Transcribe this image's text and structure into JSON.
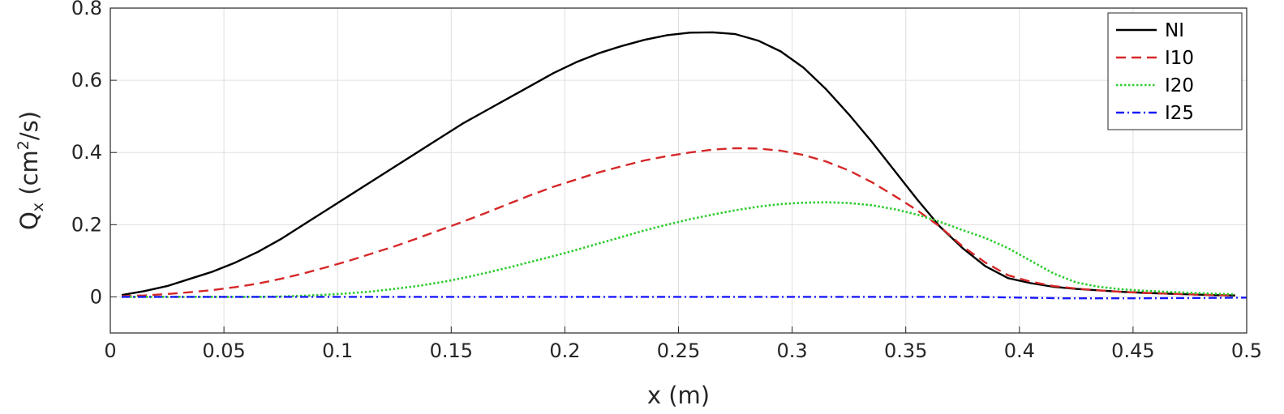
{
  "chart_data": {
    "type": "line",
    "xlabel": "x (m)",
    "ylabel": {
      "base": "Q",
      "sub": "x",
      "unit_pre": " (cm",
      "sup": "2",
      "unit_post": "/s)"
    },
    "xlim": [
      0,
      0.5
    ],
    "ylim": [
      -0.1,
      0.8
    ],
    "xticks": [
      0,
      0.05,
      0.1,
      0.15,
      0.2,
      0.25,
      0.3,
      0.35,
      0.4,
      0.45,
      0.5
    ],
    "xtick_labels": [
      "0",
      "0.05",
      "0.1",
      "0.15",
      "0.2",
      "0.25",
      "0.3",
      "0.35",
      "0.4",
      "0.45",
      "0.5"
    ],
    "yticks": [
      0,
      0.2,
      0.4,
      0.6,
      0.8
    ],
    "ytick_labels": [
      "0",
      "0.2",
      "0.4",
      "0.6",
      "0.8"
    ],
    "grid": true,
    "legend_position": "top-right",
    "series": [
      {
        "name": "NI",
        "color": "#000000",
        "dash": "solid",
        "x": [
          0.005,
          0.015,
          0.025,
          0.035,
          0.045,
          0.055,
          0.065,
          0.075,
          0.085,
          0.095,
          0.105,
          0.115,
          0.125,
          0.135,
          0.145,
          0.155,
          0.165,
          0.175,
          0.185,
          0.195,
          0.205,
          0.215,
          0.225,
          0.235,
          0.245,
          0.255,
          0.265,
          0.275,
          0.285,
          0.295,
          0.305,
          0.315,
          0.325,
          0.335,
          0.345,
          0.355,
          0.365,
          0.375,
          0.385,
          0.395,
          0.405,
          0.415,
          0.425,
          0.435,
          0.445,
          0.455,
          0.465,
          0.475,
          0.485,
          0.495
        ],
        "y": [
          0.005,
          0.016,
          0.03,
          0.05,
          0.07,
          0.095,
          0.125,
          0.16,
          0.2,
          0.24,
          0.28,
          0.32,
          0.36,
          0.4,
          0.44,
          0.48,
          0.515,
          0.55,
          0.585,
          0.62,
          0.65,
          0.675,
          0.695,
          0.712,
          0.725,
          0.732,
          0.733,
          0.728,
          0.71,
          0.68,
          0.635,
          0.575,
          0.505,
          0.43,
          0.35,
          0.27,
          0.195,
          0.135,
          0.085,
          0.052,
          0.038,
          0.028,
          0.022,
          0.018,
          0.014,
          0.011,
          0.009,
          0.007,
          0.005,
          0.004
        ]
      },
      {
        "name": "I10",
        "color": "#d62728",
        "dash": "dashed",
        "x": [
          0.005,
          0.015,
          0.025,
          0.035,
          0.045,
          0.055,
          0.065,
          0.075,
          0.085,
          0.095,
          0.105,
          0.115,
          0.125,
          0.135,
          0.145,
          0.155,
          0.165,
          0.175,
          0.185,
          0.195,
          0.205,
          0.215,
          0.225,
          0.235,
          0.245,
          0.255,
          0.265,
          0.275,
          0.285,
          0.295,
          0.305,
          0.315,
          0.325,
          0.335,
          0.345,
          0.355,
          0.365,
          0.375,
          0.385,
          0.395,
          0.405,
          0.415,
          0.425,
          0.435,
          0.445,
          0.455,
          0.465,
          0.475,
          0.485,
          0.495
        ],
        "y": [
          0.002,
          0.004,
          0.008,
          0.013,
          0.019,
          0.027,
          0.037,
          0.05,
          0.065,
          0.082,
          0.1,
          0.12,
          0.14,
          0.162,
          0.185,
          0.208,
          0.232,
          0.257,
          0.282,
          0.305,
          0.325,
          0.345,
          0.362,
          0.378,
          0.39,
          0.4,
          0.408,
          0.412,
          0.411,
          0.405,
          0.393,
          0.375,
          0.35,
          0.318,
          0.28,
          0.24,
          0.195,
          0.14,
          0.095,
          0.06,
          0.042,
          0.03,
          0.023,
          0.018,
          0.014,
          0.011,
          0.009,
          0.007,
          0.005,
          0.004
        ]
      },
      {
        "name": "I20",
        "color": "#2ecc2e",
        "dash": "dotted",
        "x": [
          0.005,
          0.015,
          0.025,
          0.035,
          0.045,
          0.055,
          0.065,
          0.075,
          0.085,
          0.095,
          0.105,
          0.115,
          0.125,
          0.135,
          0.145,
          0.155,
          0.165,
          0.175,
          0.185,
          0.195,
          0.205,
          0.215,
          0.225,
          0.235,
          0.245,
          0.255,
          0.265,
          0.275,
          0.285,
          0.295,
          0.305,
          0.315,
          0.325,
          0.335,
          0.345,
          0.355,
          0.365,
          0.375,
          0.385,
          0.395,
          0.405,
          0.415,
          0.425,
          0.435,
          0.445,
          0.455,
          0.465,
          0.475,
          0.485,
          0.495
        ],
        "y": [
          0.0,
          0.0,
          0.0,
          0.0,
          0.0,
          0.0,
          0.0,
          0.001,
          0.003,
          0.006,
          0.01,
          0.015,
          0.022,
          0.03,
          0.04,
          0.052,
          0.066,
          0.081,
          0.097,
          0.113,
          0.13,
          0.148,
          0.166,
          0.184,
          0.2,
          0.215,
          0.228,
          0.24,
          0.25,
          0.257,
          0.261,
          0.262,
          0.26,
          0.254,
          0.243,
          0.228,
          0.208,
          0.185,
          0.163,
          0.135,
          0.1,
          0.065,
          0.04,
          0.028,
          0.021,
          0.017,
          0.014,
          0.011,
          0.009,
          0.007
        ]
      },
      {
        "name": "I25",
        "color": "#1a1aff",
        "dash": "dashdot",
        "x": [
          0.005,
          0.05,
          0.1,
          0.15,
          0.2,
          0.25,
          0.3,
          0.35,
          0.38,
          0.4,
          0.42,
          0.45,
          0.48,
          0.5
        ],
        "y": [
          0.0,
          0.0,
          0.0,
          0.0,
          0.0,
          0.0,
          0.0,
          0.0,
          0.0,
          -0.002,
          -0.004,
          -0.004,
          -0.003,
          -0.002
        ]
      }
    ]
  }
}
